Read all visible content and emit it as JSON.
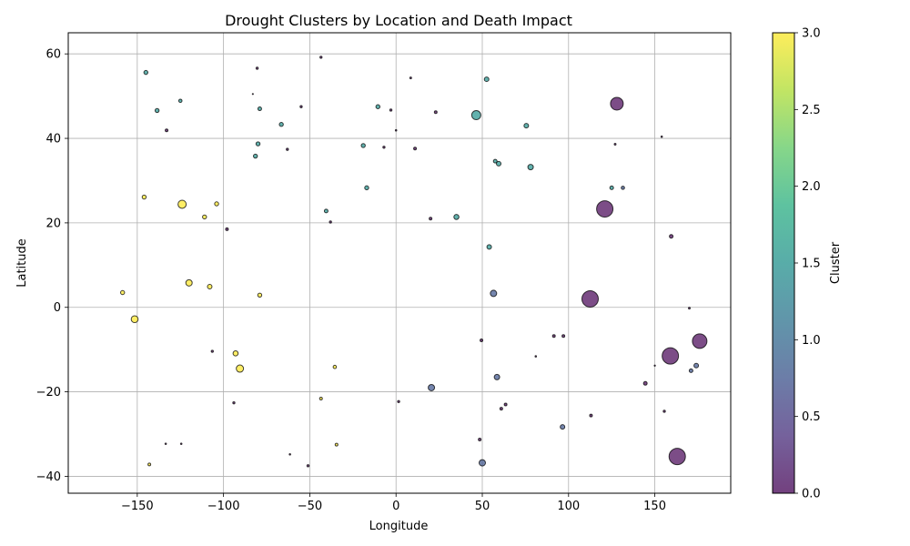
{
  "chart_data": {
    "type": "scatter",
    "title": "Drought Clusters by Location and Death Impact",
    "xlabel": "Longitude",
    "ylabel": "Latitude",
    "xlim": [
      -190,
      194
    ],
    "ylim": [
      -44,
      65
    ],
    "x_ticks": [
      -150,
      -100,
      -50,
      0,
      50,
      100,
      150
    ],
    "y_ticks": [
      -40,
      -20,
      0,
      20,
      40,
      60
    ],
    "x_tick_labels": [
      "−150",
      "−100",
      "−50",
      "0",
      "50",
      "100",
      "150"
    ],
    "y_tick_labels": [
      "−40",
      "−20",
      "0",
      "20",
      "40",
      "60"
    ],
    "grid": true,
    "colorbar": {
      "label": "Cluster",
      "range": [
        0,
        3
      ],
      "ticks": [
        0,
        0.5,
        1,
        1.5,
        2,
        2.5,
        3
      ],
      "tick_labels": [
        "0.0",
        "0.5",
        "1.0",
        "1.5",
        "2.0",
        "2.5",
        "3.0"
      ],
      "colormap": "viridis"
    },
    "points": [
      {
        "x": 128,
        "y": 48.2,
        "cluster": 0,
        "size": 7
      },
      {
        "x": 121,
        "y": 23.3,
        "cluster": 0,
        "size": 9
      },
      {
        "x": 112.5,
        "y": 2,
        "cluster": 0,
        "size": 9
      },
      {
        "x": 176,
        "y": -8,
        "cluster": 0,
        "size": 8
      },
      {
        "x": 159,
        "y": -11.5,
        "cluster": 0,
        "size": 9
      },
      {
        "x": 163,
        "y": -35.3,
        "cluster": 0,
        "size": 9
      },
      {
        "x": 127,
        "y": 38.6,
        "cluster": 0,
        "size": 1
      },
      {
        "x": 154,
        "y": 40.4,
        "cluster": 0,
        "size": 0.8
      },
      {
        "x": 159.5,
        "y": 16.8,
        "cluster": 0,
        "size": 2
      },
      {
        "x": 170,
        "y": -0.2,
        "cluster": 0,
        "size": 1
      },
      {
        "x": 150,
        "y": -13.8,
        "cluster": 0,
        "size": 0.7
      },
      {
        "x": 144.5,
        "y": -18,
        "cluster": 0,
        "size": 2
      },
      {
        "x": 155.5,
        "y": -24.6,
        "cluster": 0,
        "size": 1.2
      },
      {
        "x": 113,
        "y": -25.6,
        "cluster": 0,
        "size": 1.5
      },
      {
        "x": 91.5,
        "y": -6.8,
        "cluster": 0,
        "size": 1.5
      },
      {
        "x": 97,
        "y": -6.8,
        "cluster": 0,
        "size": 1.5
      },
      {
        "x": 81,
        "y": -11.6,
        "cluster": 0,
        "size": 0.8
      },
      {
        "x": 63.5,
        "y": -23,
        "cluster": 0,
        "size": 1.5
      },
      {
        "x": 61,
        "y": -24,
        "cluster": 0,
        "size": 1.5
      },
      {
        "x": 49.5,
        "y": -7.8,
        "cluster": 0,
        "size": 1.5
      },
      {
        "x": 48.5,
        "y": -31.3,
        "cluster": 0,
        "size": 1.5
      },
      {
        "x": 1.5,
        "y": -22.3,
        "cluster": 0,
        "size": 1.2
      },
      {
        "x": -51,
        "y": -37.5,
        "cluster": 0,
        "size": 1.2
      },
      {
        "x": -61.5,
        "y": -34.8,
        "cluster": 0,
        "size": 0.8
      },
      {
        "x": -94,
        "y": -22.6,
        "cluster": 0,
        "size": 1.2
      },
      {
        "x": -106.5,
        "y": -10.4,
        "cluster": 0,
        "size": 1.2
      },
      {
        "x": -124.5,
        "y": -32.3,
        "cluster": 0,
        "size": 0.8
      },
      {
        "x": -133.5,
        "y": -32.3,
        "cluster": 0,
        "size": 0.8
      },
      {
        "x": -98,
        "y": 18.5,
        "cluster": 0,
        "size": 1.5
      },
      {
        "x": -38,
        "y": 20.2,
        "cluster": 0,
        "size": 1.2
      },
      {
        "x": 20,
        "y": 21,
        "cluster": 0,
        "size": 1.5
      },
      {
        "x": 11,
        "y": 37.6,
        "cluster": 0,
        "size": 1.5
      },
      {
        "x": -7,
        "y": 37.9,
        "cluster": 0,
        "size": 1.2
      },
      {
        "x": 0,
        "y": 41.9,
        "cluster": 0,
        "size": 0.8
      },
      {
        "x": -63,
        "y": 37.4,
        "cluster": 0,
        "size": 1.2
      },
      {
        "x": -3,
        "y": 46.7,
        "cluster": 0,
        "size": 1.2
      },
      {
        "x": -55,
        "y": 47.5,
        "cluster": 0,
        "size": 1.2
      },
      {
        "x": 23,
        "y": 46.2,
        "cluster": 0,
        "size": 1.5
      },
      {
        "x": 8.5,
        "y": 54.3,
        "cluster": 0,
        "size": 1
      },
      {
        "x": -43.5,
        "y": 59.2,
        "cluster": 0,
        "size": 1.2
      },
      {
        "x": -80.5,
        "y": 56.6,
        "cluster": 0,
        "size": 1.2
      },
      {
        "x": -83,
        "y": 50.5,
        "cluster": 0,
        "size": 0.6
      },
      {
        "x": -133,
        "y": 41.9,
        "cluster": 0,
        "size": 1.5
      },
      {
        "x": 174,
        "y": -13.8,
        "cluster": 1,
        "size": 2.5
      },
      {
        "x": 171,
        "y": -15,
        "cluster": 1,
        "size": 2
      },
      {
        "x": 96.5,
        "y": -28.3,
        "cluster": 1,
        "size": 2.5
      },
      {
        "x": 58.5,
        "y": -16.5,
        "cluster": 1,
        "size": 3
      },
      {
        "x": 56.5,
        "y": 3.3,
        "cluster": 1,
        "size": 3.5
      },
      {
        "x": 20.5,
        "y": -19,
        "cluster": 1,
        "size": 3.5
      },
      {
        "x": 50,
        "y": -36.8,
        "cluster": 1,
        "size": 3.5
      },
      {
        "x": 131.5,
        "y": 28.3,
        "cluster": 1,
        "size": 1.8
      },
      {
        "x": 46.5,
        "y": 45.5,
        "cluster": 2,
        "size": 5
      },
      {
        "x": 125,
        "y": 28.3,
        "cluster": 2,
        "size": 2
      },
      {
        "x": 78,
        "y": 33.2,
        "cluster": 2,
        "size": 3
      },
      {
        "x": 75.5,
        "y": 43,
        "cluster": 2,
        "size": 2.5
      },
      {
        "x": 52.5,
        "y": 54,
        "cluster": 2,
        "size": 2.5
      },
      {
        "x": 57.5,
        "y": 34.6,
        "cluster": 2,
        "size": 2
      },
      {
        "x": 59.5,
        "y": 34,
        "cluster": 2,
        "size": 2.5
      },
      {
        "x": 54,
        "y": 14.3,
        "cluster": 2,
        "size": 2.5
      },
      {
        "x": 35,
        "y": 21.4,
        "cluster": 2,
        "size": 2.8
      },
      {
        "x": -17,
        "y": 28.3,
        "cluster": 2,
        "size": 2.2
      },
      {
        "x": -19,
        "y": 38.3,
        "cluster": 2,
        "size": 2.2
      },
      {
        "x": -10.5,
        "y": 47.5,
        "cluster": 2,
        "size": 2.2
      },
      {
        "x": -40.5,
        "y": 22.8,
        "cluster": 2,
        "size": 2
      },
      {
        "x": -66.5,
        "y": 43.3,
        "cluster": 2,
        "size": 2.2
      },
      {
        "x": -79,
        "y": 47,
        "cluster": 2,
        "size": 2
      },
      {
        "x": -80,
        "y": 38.7,
        "cluster": 2,
        "size": 2.2
      },
      {
        "x": -81.5,
        "y": 35.8,
        "cluster": 2,
        "size": 2.2
      },
      {
        "x": -125,
        "y": 48.9,
        "cluster": 2,
        "size": 1.8
      },
      {
        "x": -138.5,
        "y": 46.6,
        "cluster": 2,
        "size": 2.2
      },
      {
        "x": -145,
        "y": 55.6,
        "cluster": 2,
        "size": 2.2
      },
      {
        "x": -124,
        "y": 24.4,
        "cluster": 3,
        "size": 4.5
      },
      {
        "x": -146,
        "y": 26.1,
        "cluster": 3,
        "size": 2.2
      },
      {
        "x": -111,
        "y": 21.4,
        "cluster": 3,
        "size": 2.2
      },
      {
        "x": -104,
        "y": 24.5,
        "cluster": 3,
        "size": 2.2
      },
      {
        "x": -120,
        "y": 5.8,
        "cluster": 3,
        "size": 3.5
      },
      {
        "x": -108,
        "y": 4.9,
        "cluster": 3,
        "size": 2.5
      },
      {
        "x": -79,
        "y": 2.9,
        "cluster": 3,
        "size": 2.2
      },
      {
        "x": -158.5,
        "y": 3.5,
        "cluster": 3,
        "size": 2.2
      },
      {
        "x": -151.5,
        "y": -2.8,
        "cluster": 3,
        "size": 3.8
      },
      {
        "x": -93,
        "y": -10.9,
        "cluster": 3,
        "size": 2.8
      },
      {
        "x": -90.5,
        "y": -14.5,
        "cluster": 3,
        "size": 4
      },
      {
        "x": -35.5,
        "y": -14.1,
        "cluster": 3,
        "size": 1.8
      },
      {
        "x": -43.5,
        "y": -21.6,
        "cluster": 3,
        "size": 1.5
      },
      {
        "x": -34.5,
        "y": -32.5,
        "cluster": 3,
        "size": 1.5
      },
      {
        "x": -143,
        "y": -37.2,
        "cluster": 3,
        "size": 1.5
      }
    ]
  }
}
